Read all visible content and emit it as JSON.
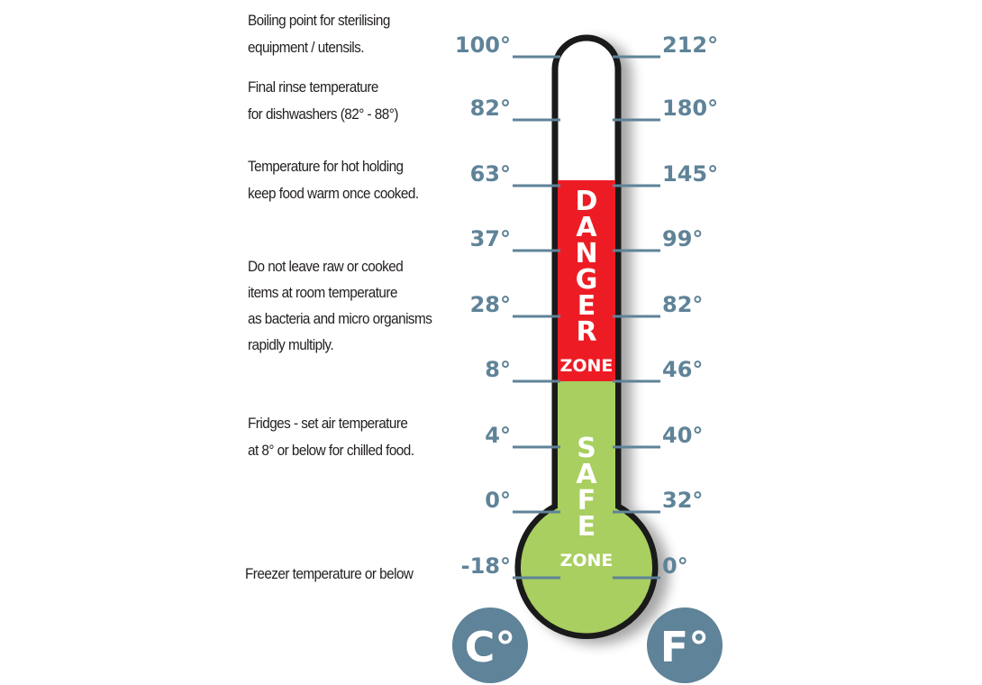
{
  "notes": [
    {
      "lines": [
        "Boiling point for sterilising",
        "equipment / utensils."
      ]
    },
    {
      "lines": [
        "Final rinse temperature",
        "for dishwashers (82° - 88°)"
      ]
    },
    {
      "lines": [
        "Temperature for hot holding",
        "keep food warm once cooked."
      ]
    },
    {
      "lines": [
        "Do not leave raw or cooked",
        "items at room temperature",
        "as bacteria and micro organisms",
        "rapidly multiply."
      ]
    },
    {
      "lines": [
        "Fridges - set air temperature",
        "at 8° or below for chilled food."
      ]
    },
    {
      "lines": [
        "Freezer temperature or below"
      ]
    }
  ],
  "scale": {
    "celsius": [
      "100°",
      "82°",
      "63°",
      "37°",
      "28°",
      "8°",
      "4°",
      "0°",
      "-18°"
    ],
    "fahrenheit": [
      "212°",
      "180°",
      "145°",
      "99°",
      "82°",
      "46°",
      "40°",
      "32°",
      "0°"
    ]
  },
  "zones": {
    "danger": {
      "letters": [
        "D",
        "A",
        "N",
        "G",
        "E",
        "R"
      ],
      "sub": "ZONE",
      "color": "#ed1c24"
    },
    "safe": {
      "letters": [
        "S",
        "A",
        "F",
        "E"
      ],
      "sub": "ZONE",
      "color": "#a8cf5f"
    }
  },
  "units": {
    "celsius": "C°",
    "fahrenheit": "F°"
  },
  "colors": {
    "scale": "#5f8398",
    "outline": "#1a1a1a"
  }
}
